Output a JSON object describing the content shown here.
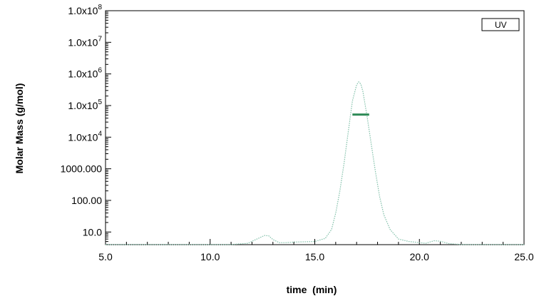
{
  "chart_data": {
    "type": "line",
    "xlabel": "time  (min)",
    "ylabel": "Molar Mass (g/mol)",
    "xlim": [
      5.0,
      25.0
    ],
    "ylim_log10": [
      0.6,
      8.0
    ],
    "y_scale": "log",
    "grid": false,
    "legend_position": "top-right",
    "x_ticks": [
      {
        "value": 5.0,
        "label": "5.0"
      },
      {
        "value": 10.0,
        "label": "10.0"
      },
      {
        "value": 15.0,
        "label": "15.0"
      },
      {
        "value": 20.0,
        "label": "20.0"
      },
      {
        "value": 25.0,
        "label": "25.0"
      }
    ],
    "y_ticks": [
      {
        "value": 10,
        "label": "10.0"
      },
      {
        "value": 100,
        "label": "100.00"
      },
      {
        "value": 1000,
        "label": "1000.000"
      },
      {
        "value": 10000,
        "base": "1.0x10",
        "exp": "4"
      },
      {
        "value": 100000,
        "base": "1.0x10",
        "exp": "5"
      },
      {
        "value": 1000000,
        "base": "1.0x10",
        "exp": "6"
      },
      {
        "value": 10000000,
        "base": "1.0x10",
        "exp": "7"
      },
      {
        "value": 100000000,
        "base": "1.0x10",
        "exp": "8"
      }
    ],
    "series": [
      {
        "name": "UV",
        "color": "#7fbfa8",
        "style": "dotted",
        "x": [
          5.0,
          11.0,
          11.8,
          12.3,
          12.6,
          12.8,
          13.0,
          13.3,
          13.6,
          14.0,
          15.0,
          15.5,
          15.8,
          16.0,
          16.2,
          16.4,
          16.6,
          16.8,
          17.0,
          17.1,
          17.2,
          17.3,
          17.5,
          17.7,
          17.9,
          18.1,
          18.3,
          18.6,
          19.0,
          19.5,
          19.9,
          20.3,
          20.7,
          21.0,
          21.4,
          22.0,
          25.0
        ],
        "y": [
          4.0,
          4.0,
          4.4,
          6.3,
          7.8,
          7.6,
          5.8,
          4.6,
          4.6,
          4.8,
          5.0,
          6.3,
          12,
          40,
          200,
          1500,
          15000,
          140000,
          450000,
          560000,
          480000,
          280000,
          45000,
          6000,
          800,
          130,
          35,
          12,
          6.0,
          5.0,
          4.7,
          4.4,
          5.3,
          5.1,
          4.3,
          4.0,
          4.0
        ]
      },
      {
        "name": "",
        "color": "#2e8b57",
        "style": "solid",
        "x": [
          16.8,
          17.6
        ],
        "y": [
          52000,
          52000
        ]
      }
    ]
  },
  "legend": {
    "label": "UV"
  }
}
